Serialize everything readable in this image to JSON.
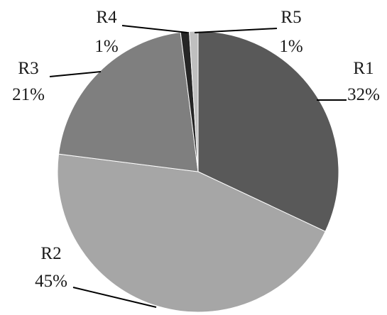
{
  "chart_data": {
    "type": "pie",
    "title": "",
    "slices": [
      {
        "name": "R1",
        "value": 32,
        "percent_label": "32%",
        "color": "#595959"
      },
      {
        "name": "R2",
        "value": 45,
        "percent_label": "45%",
        "color": "#a6a6a6"
      },
      {
        "name": "R3",
        "value": 21,
        "percent_label": "21%",
        "color": "#7f7f7f"
      },
      {
        "name": "R4",
        "value": 1,
        "percent_label": "1%",
        "color": "#262626"
      },
      {
        "name": "R5",
        "value": 1,
        "percent_label": "1%",
        "color": "#bfbfbf"
      }
    ],
    "start_angle": "12 o'clock",
    "direction": "clockwise",
    "legend": "none",
    "data_labels": "outside with leader lines"
  }
}
